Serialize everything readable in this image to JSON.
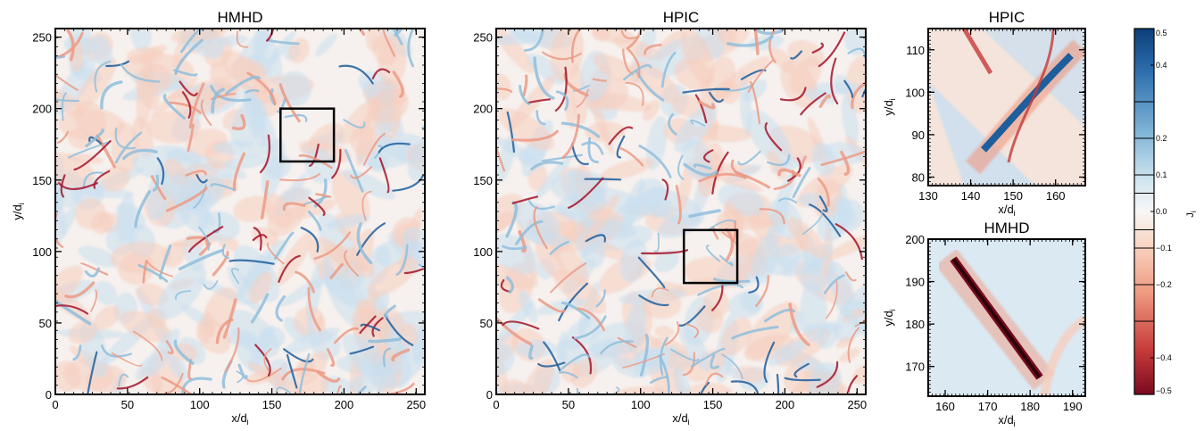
{
  "chart_data": [
    {
      "type": "heatmap",
      "title": "HMHD",
      "xlabel": "x/d",
      "xlabel_sub": "i",
      "ylabel": "y/d",
      "ylabel_sub": "i",
      "xlim": [
        0,
        256
      ],
      "ylim": [
        0,
        256
      ],
      "xticks": [
        "0",
        "50",
        "100",
        "150",
        "200",
        "250"
      ],
      "yticks": [
        "0",
        "50",
        "100",
        "150",
        "200",
        "250"
      ],
      "zoom_box": {
        "x": [
          156,
          193
        ],
        "y": [
          163,
          200
        ]
      }
    },
    {
      "type": "heatmap",
      "title": "HPIC",
      "xlabel": "x/d",
      "xlabel_sub": "i",
      "ylabel": "",
      "ylabel_sub": "",
      "xlim": [
        0,
        256
      ],
      "ylim": [
        0,
        256
      ],
      "xticks": [
        "0",
        "50",
        "100",
        "150",
        "200",
        "250"
      ],
      "yticks": [
        "0",
        "50",
        "100",
        "150",
        "200",
        "250"
      ],
      "zoom_box": {
        "x": [
          130,
          167
        ],
        "y": [
          78,
          115
        ]
      }
    },
    {
      "type": "heatmap",
      "title": "HPIC",
      "xlabel": "x/d",
      "xlabel_sub": "i",
      "ylabel": "y/d",
      "ylabel_sub": "i",
      "xlim": [
        130,
        167
      ],
      "ylim": [
        78,
        115
      ],
      "xticks": [
        "130",
        "140",
        "150",
        "160"
      ],
      "yticks": [
        "80",
        "90",
        "100",
        "110"
      ]
    },
    {
      "type": "heatmap",
      "title": "HMHD",
      "xlabel": "x/d",
      "xlabel_sub": "i",
      "ylabel": "y/d",
      "ylabel_sub": "i",
      "xlim": [
        156,
        193
      ],
      "ylim": [
        163,
        200
      ],
      "xticks": [
        "160",
        "170",
        "180",
        "190"
      ],
      "yticks": [
        "170",
        "180",
        "190",
        "200"
      ]
    }
  ],
  "colorbar": {
    "label": "J",
    "label_sub": "i",
    "range": [
      -0.5,
      0.5
    ],
    "ticks": [
      "0.5",
      "0.4",
      "0.2",
      "0.1",
      "0.0",
      "−0.1",
      "−0.2",
      "−0.4",
      "−0.5"
    ],
    "tick_values": [
      0.5,
      0.4,
      0.2,
      0.1,
      0.0,
      -0.1,
      -0.2,
      -0.4,
      -0.5
    ],
    "boundaries": [
      0.3,
      0.2,
      0.1,
      0.05,
      -0.05,
      -0.1,
      -0.2,
      -0.3
    ],
    "colors": {
      "positive": "#0b3e7a",
      "zero": "#f7f7f7",
      "negative": "#7a0a1f"
    }
  }
}
